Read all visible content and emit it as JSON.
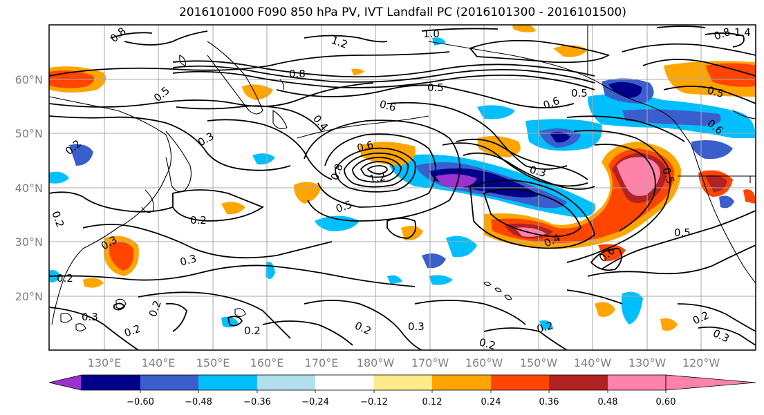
{
  "title": "2016101000 F090 850 hPa PV, IVT Landfall PC (2016101300 - 2016101500)",
  "lat_labels": [
    "60°N",
    "50°N",
    "40°N",
    "30°N",
    "20°N"
  ],
  "lon_labels": [
    "130°E",
    "140°E",
    "150°E",
    "160°E",
    "170°E",
    "180°W",
    "170°W",
    "160°W",
    "150°W",
    "140°W",
    "130°W",
    "120°W"
  ],
  "colorbar": {
    "colors": [
      "#9a32cd",
      "#00008b",
      "#3a5fcd",
      "#00bfff",
      "#b2dfee",
      "#ffffff",
      "#fdeb8a",
      "#ffa500",
      "#ff4500",
      "#b22222",
      "#ff82ab"
    ],
    "tick_labels": [
      "−0.60",
      "−0.48",
      "−0.36",
      "−0.24",
      "−0.12",
      "0.12",
      "0.24",
      "0.36",
      "0.48",
      "0.60"
    ]
  },
  "contour_labels": [
    "0.8",
    "1.0",
    "1.2",
    "1.4",
    "0.8",
    "0.8",
    "0.5",
    "0.5",
    "0.5",
    "0.5",
    "0.6",
    "0.6",
    "0.4",
    "0.3",
    "0.2",
    "0.2",
    "0.2",
    "0.3",
    "0.6",
    "1.2",
    "0.8",
    "0.5",
    "0.3",
    "0.4",
    "0.5",
    "0.6",
    "0.5",
    "0.6",
    "0.3",
    "0.3",
    "0.2",
    "0.2",
    "0.2",
    "0.3",
    "0.2",
    "0.2",
    "0.2",
    "0.3",
    "0.2",
    "0.2"
  ]
}
